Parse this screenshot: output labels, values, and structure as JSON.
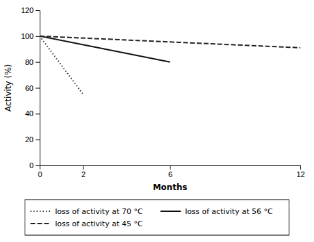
{
  "chart_data": {
    "type": "line",
    "xlabel": "Months",
    "ylabel": "Activity (%)",
    "xlim": [
      0,
      12
    ],
    "ylim": [
      0,
      120
    ],
    "xticks": [
      0,
      2,
      6,
      12
    ],
    "yticks": [
      0,
      20,
      40,
      60,
      80,
      100,
      120
    ],
    "legend": "bottom",
    "series": [
      {
        "name": "loss of activity at 70 °C",
        "color": "#333333",
        "line_style": "dotted",
        "x": [
          0,
          2
        ],
        "values": [
          100,
          55
        ]
      },
      {
        "name": "loss of activity at 56 °C",
        "color": "#111111",
        "line_style": "solid",
        "x": [
          0,
          6
        ],
        "values": [
          100,
          80
        ]
      },
      {
        "name": "loss of activity at 45 °C",
        "color": "#222222",
        "line_style": "dashed",
        "x": [
          0,
          12
        ],
        "values": [
          100,
          91
        ]
      }
    ]
  }
}
